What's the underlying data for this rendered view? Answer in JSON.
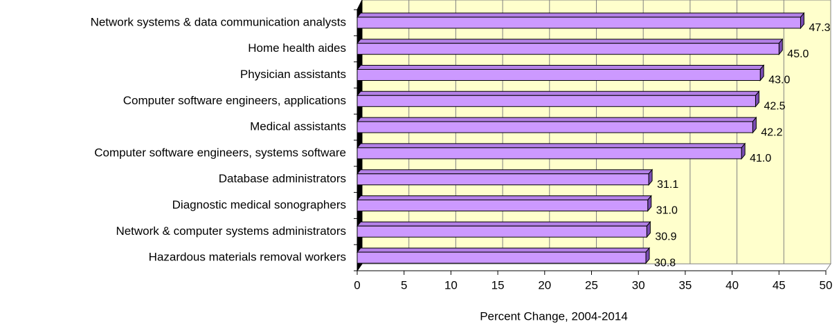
{
  "chart_data": {
    "type": "bar",
    "orientation": "horizontal",
    "xlabel": "Percent Change, 2004-2014",
    "categories": [
      "Network systems & data communication analysts",
      "Home health aides",
      "Physician assistants",
      "Computer software engineers, applications",
      "Medical assistants",
      "Computer software engineers, systems software",
      "Database administrators",
      "Diagnostic medical sonographers",
      "Network & computer systems administrators",
      "Hazardous materials removal workers"
    ],
    "values": [
      47.3,
      45.0,
      43.0,
      42.5,
      42.2,
      41.0,
      31.1,
      31.0,
      30.9,
      30.8
    ],
    "value_labels": [
      "47.3",
      "45.0",
      "43.0",
      "42.5",
      "42.2",
      "41.0",
      "31.1",
      "31.0",
      "30.9",
      "30.8"
    ],
    "color": "#cc99ff",
    "xlim": [
      0,
      50
    ],
    "xticks": [
      0,
      5,
      10,
      15,
      20,
      25,
      30,
      35,
      40,
      45,
      50
    ],
    "grid": true
  }
}
